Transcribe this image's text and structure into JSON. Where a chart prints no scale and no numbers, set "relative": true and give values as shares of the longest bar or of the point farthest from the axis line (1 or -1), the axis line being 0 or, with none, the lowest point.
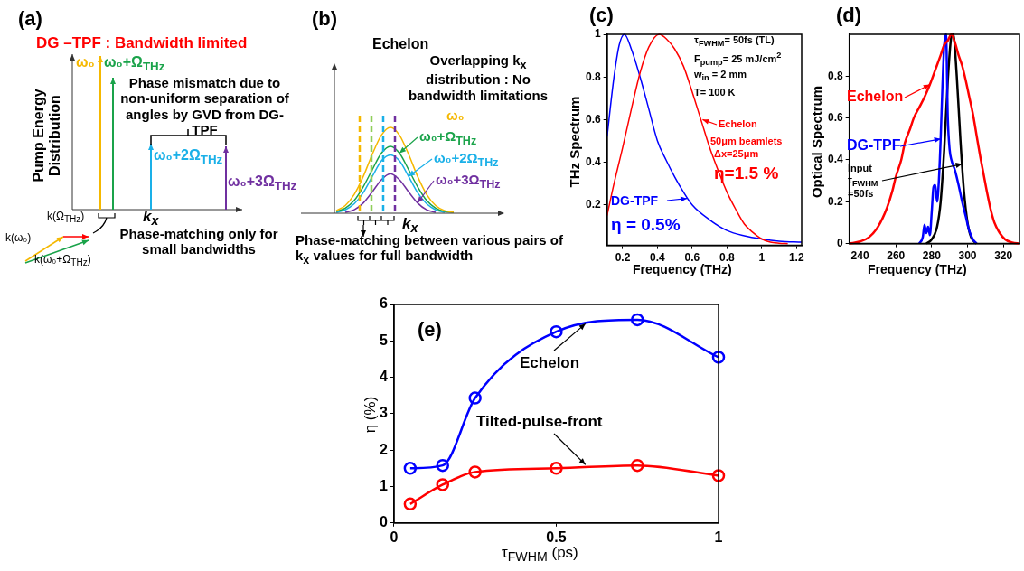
{
  "chart_data": [
    {
      "type": "other",
      "title": "DG –TPF : Bandwidth limited",
      "xlabel": "k$_{x}$",
      "ylabel": "Pump Energy Distribution",
      "annotations": [
        "(a)",
        "ω₀",
        "ω₀+Ω$_{THz}$",
        "Phase mismatch due to non-uniform separation of angles by GVD from DG-TPF",
        "ω₀+2Ω$_{THz}$",
        "ω₀+3Ω$_{THz}$",
        "k(Ω$_{THz}$)",
        "k(ω₀)",
        "k(ω₀+Ω$_{THz}$)",
        "Phase-matching only for small bandwidths"
      ]
    },
    {
      "type": "line",
      "relative": true,
      "title": "Echelon",
      "xlabel": "k$_{x}$",
      "marker": "none",
      "categories": [
        null,
        null,
        null,
        null,
        null,
        null,
        null,
        null,
        null,
        null,
        null,
        null,
        null,
        null,
        null,
        null,
        null,
        null
      ],
      "annotations": [
        "(b)",
        "Overlapping k$_{x}$ distribution : No bandwidth limitations",
        "Phase-matching between various pairs of k$_{x}$ values for full bandwidth",
        "ω₀",
        "ω₀+Ω$_{THz}$",
        "ω₀+2Ω$_{THz}$",
        "ω₀+3Ω$_{THz}$"
      ],
      "series": [
        {
          "color": "#f5b800",
          "values": [
            0.03,
            0.09,
            0.22,
            0.43,
            0.69,
            0.91,
            1,
            0.91,
            0.69,
            0.43,
            0.22,
            0.09,
            0.03,
            0.01,
            null,
            null,
            null,
            null
          ]
        },
        {
          "color": "#1aa34a",
          "values": [
            0.02,
            0.06,
            0.15,
            0.31,
            0.51,
            0.7,
            0.78,
            0.7,
            0.51,
            0.31,
            0.15,
            0.06,
            0.02,
            0.01,
            null,
            null,
            null,
            null
          ]
        },
        {
          "color": "#1ab0e8",
          "values": [
            0.01,
            0.04,
            0.11,
            0.24,
            0.43,
            0.61,
            0.68,
            0.61,
            0.43,
            0.24,
            0.11,
            0.04,
            0.01,
            null,
            null,
            null,
            null,
            null
          ]
        },
        {
          "color": "#7030a0",
          "values": [
            null,
            0.01,
            0.04,
            0.12,
            0.25,
            0.39,
            0.46,
            0.39,
            0.25,
            0.12,
            0.04,
            0.01,
            null,
            null,
            null,
            null,
            null,
            null
          ]
        }
      ]
    },
    {
      "type": "line",
      "xlabel": "Frequency (THz)",
      "ylabel": "THz Spectrum",
      "xlim": [
        0.11,
        1.23
      ],
      "ylim": [
        0.01,
        1
      ],
      "xticks": [
        0.2,
        0.4,
        0.6,
        0.8,
        1,
        1.2
      ],
      "yticks": [
        0.2,
        0.4,
        0.6,
        0.8,
        1
      ],
      "marker": "none",
      "annotations": [
        "(c)",
        "τ$_{FWHM}$= 50fs (TL)",
        "F$_{pump}$= 25 mJ/cm$^{2}$",
        "w$_{in}$ = 2 mm",
        "T= 100 K",
        "50μm beamlets",
        "Δx=25μm",
        "η=1.5 %",
        "η = 0.5%"
      ],
      "series": [
        {
          "name": "Echelon",
          "color": "#ff0000",
          "x": [
            0.11,
            0.15,
            0.2,
            0.25,
            0.3,
            0.35,
            0.41,
            0.45,
            0.5,
            0.55,
            0.6,
            0.65,
            0.7,
            0.75,
            0.8,
            0.85,
            0.9,
            0.95,
            1.0,
            1.05,
            1.1,
            1.15
          ],
          "values": [
            0.15,
            0.3,
            0.47,
            0.65,
            0.82,
            0.94,
            1.0,
            0.98,
            0.93,
            0.85,
            0.73,
            0.6,
            0.47,
            0.36,
            0.26,
            0.18,
            0.11,
            0.07,
            0.04,
            0.025,
            0.02,
            0.018
          ]
        },
        {
          "name": "DG-TPF",
          "color": "#0000ff",
          "x": [
            0.11,
            0.15,
            0.18,
            0.21,
            0.25,
            0.3,
            0.35,
            0.4,
            0.45,
            0.5,
            0.55,
            0.6,
            0.7,
            0.8,
            0.9,
            1.0,
            1.1,
            1.23
          ],
          "values": [
            0.52,
            0.8,
            0.95,
            1.0,
            0.93,
            0.8,
            0.65,
            0.5,
            0.41,
            0.33,
            0.26,
            0.2,
            0.13,
            0.08,
            0.055,
            0.04,
            0.03,
            0.025
          ]
        }
      ]
    },
    {
      "type": "line",
      "xlabel": "Frequency (THz)",
      "ylabel": "Optical Spectrum",
      "xlim": [
        234,
        329
      ],
      "ylim": [
        0,
        1
      ],
      "xticks": [
        240,
        260,
        280,
        300,
        320
      ],
      "yticks": [
        0,
        0.2,
        0.4,
        0.6,
        0.8
      ],
      "marker": "none",
      "annotations": [
        "(d)",
        {
          "text": "Echelon",
          "x": 279,
          "y": 0.76
        },
        {
          "text": "DG-TPF",
          "x": 285,
          "y": 0.5
        },
        {
          "text": "Input τ$_{FWHM}$ =50fs",
          "x": 297,
          "y": 0.38
        }
      ],
      "series": [
        {
          "color": "#ff0000",
          "x": [
            234,
            240,
            245,
            250,
            255,
            258,
            260,
            263,
            265,
            268,
            270,
            273,
            276,
            279,
            282,
            285,
            287,
            289,
            291,
            293,
            295,
            297,
            299,
            301,
            303,
            305,
            307,
            309,
            311,
            313,
            315,
            318,
            321,
            325,
            329
          ],
          "values": [
            0,
            0.01,
            0.03,
            0.08,
            0.17,
            0.25,
            0.32,
            0.4,
            0.48,
            0.55,
            0.6,
            0.65,
            0.7,
            0.76,
            0.83,
            0.9,
            0.95,
            0.97,
            1.0,
            0.96,
            0.9,
            0.85,
            0.78,
            0.7,
            0.62,
            0.52,
            0.42,
            0.33,
            0.24,
            0.16,
            0.1,
            0.05,
            0.02,
            0.005,
            0
          ]
        },
        {
          "color": "#0000ff",
          "x": [
            273,
            275,
            276,
            277,
            278,
            279,
            280,
            281,
            282,
            283,
            284,
            285,
            286,
            287,
            288,
            289,
            290,
            291,
            293,
            295,
            297,
            299,
            301,
            303,
            305
          ],
          "values": [
            0,
            0.03,
            0.09,
            0.05,
            0.08,
            0.04,
            0.15,
            0.27,
            0.28,
            0.2,
            0.3,
            0.5,
            0.75,
            0.95,
            1.0,
            0.6,
            0.45,
            0.4,
            0.35,
            0.28,
            0.2,
            0.13,
            0.06,
            0.02,
            0
          ]
        },
        {
          "color": "#000000",
          "x": [
            277,
            280,
            283,
            285,
            287,
            289,
            291,
            292,
            294,
            296,
            298,
            300,
            302,
            305
          ],
          "values": [
            0,
            0.02,
            0.08,
            0.2,
            0.45,
            0.78,
            0.99,
            1.0,
            0.8,
            0.5,
            0.25,
            0.1,
            0.03,
            0
          ]
        }
      ]
    },
    {
      "type": "line",
      "xlabel": "τ$_{FWHM}$ (ps)",
      "ylabel": "η (%)",
      "xlim": [
        0,
        1
      ],
      "ylim": [
        0,
        6
      ],
      "xticks": [
        0,
        0.5,
        1
      ],
      "yticks": [
        0,
        1,
        2,
        3,
        4,
        5,
        6
      ],
      "marker": "circle",
      "annotations": [
        "(e)"
      ],
      "series": [
        {
          "name": "Echelon",
          "color": "#0000ff",
          "x": [
            0.05,
            0.15,
            0.25,
            0.5,
            0.75,
            1
          ],
          "values": [
            1.5,
            1.58,
            3.43,
            5.25,
            5.58,
            4.55
          ]
        },
        {
          "name": "Tilted-pulse-front",
          "color": "#ff0000",
          "x": [
            0.05,
            0.15,
            0.25,
            0.5,
            0.75,
            1
          ],
          "values": [
            0.52,
            1.05,
            1.4,
            1.5,
            1.58,
            1.3
          ]
        }
      ]
    }
  ]
}
